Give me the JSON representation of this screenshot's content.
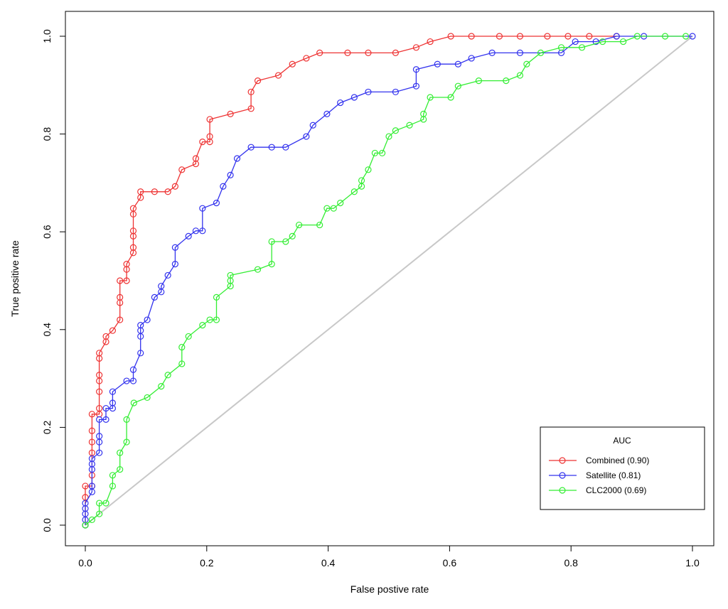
{
  "chart_data": {
    "type": "line",
    "title": "",
    "xlabel": "False postive rate",
    "ylabel": "True positive rate",
    "xlim": [
      0,
      1
    ],
    "ylim": [
      0,
      1
    ],
    "xticks": [
      "0.0",
      "0.2",
      "0.4",
      "0.6",
      "0.8",
      "1.0"
    ],
    "yticks": [
      "0.0",
      "0.2",
      "0.4",
      "0.6",
      "0.8",
      "1.0"
    ],
    "grid": false,
    "legend": {
      "title": "AUC",
      "position": "bottom-right",
      "entries": [
        "Combined (0.90)",
        "Satellite (0.81)",
        "CLC2000 (0.69)"
      ]
    },
    "diagonal": {
      "color": "#c8c8c8",
      "from": [
        0,
        0
      ],
      "to": [
        1,
        1
      ]
    },
    "series": [
      {
        "name": "Combined (0.90)",
        "color": "#ee3333",
        "points": [
          [
            0,
            0
          ],
          [
            0,
            0.057
          ],
          [
            0,
            0.08
          ],
          [
            0.011,
            0.08
          ],
          [
            0.011,
            0.102
          ],
          [
            0.011,
            0.148
          ],
          [
            0.011,
            0.17
          ],
          [
            0.011,
            0.193
          ],
          [
            0.011,
            0.227
          ],
          [
            0.023,
            0.227
          ],
          [
            0.023,
            0.239
          ],
          [
            0.023,
            0.273
          ],
          [
            0.023,
            0.295
          ],
          [
            0.023,
            0.307
          ],
          [
            0.023,
            0.341
          ],
          [
            0.023,
            0.352
          ],
          [
            0.034,
            0.375
          ],
          [
            0.034,
            0.386
          ],
          [
            0.045,
            0.398
          ],
          [
            0.057,
            0.42
          ],
          [
            0.057,
            0.455
          ],
          [
            0.057,
            0.466
          ],
          [
            0.057,
            0.5
          ],
          [
            0.068,
            0.5
          ],
          [
            0.068,
            0.523
          ],
          [
            0.068,
            0.534
          ],
          [
            0.079,
            0.557
          ],
          [
            0.079,
            0.568
          ],
          [
            0.079,
            0.591
          ],
          [
            0.079,
            0.602
          ],
          [
            0.079,
            0.636
          ],
          [
            0.079,
            0.648
          ],
          [
            0.091,
            0.67
          ],
          [
            0.091,
            0.682
          ],
          [
            0.114,
            0.682
          ],
          [
            0.136,
            0.682
          ],
          [
            0.148,
            0.693
          ],
          [
            0.159,
            0.727
          ],
          [
            0.182,
            0.739
          ],
          [
            0.182,
            0.75
          ],
          [
            0.193,
            0.784
          ],
          [
            0.205,
            0.784
          ],
          [
            0.205,
            0.795
          ],
          [
            0.205,
            0.83
          ],
          [
            0.239,
            0.841
          ],
          [
            0.273,
            0.852
          ],
          [
            0.273,
            0.886
          ],
          [
            0.284,
            0.909
          ],
          [
            0.318,
            0.92
          ],
          [
            0.341,
            0.943
          ],
          [
            0.364,
            0.955
          ],
          [
            0.386,
            0.966
          ],
          [
            0.432,
            0.966
          ],
          [
            0.466,
            0.966
          ],
          [
            0.511,
            0.966
          ],
          [
            0.545,
            0.977
          ],
          [
            0.568,
            0.989
          ],
          [
            0.602,
            1.0
          ],
          [
            0.636,
            1.0
          ],
          [
            0.682,
            1.0
          ],
          [
            0.716,
            1.0
          ],
          [
            0.761,
            1.0
          ],
          [
            0.795,
            1.0
          ],
          [
            0.83,
            1.0
          ],
          [
            0.875,
            1.0
          ]
        ]
      },
      {
        "name": "Satellite (0.81)",
        "color": "#3333ee",
        "points": [
          [
            0,
            0
          ],
          [
            0,
            0.011
          ],
          [
            0,
            0.023
          ],
          [
            0,
            0.034
          ],
          [
            0,
            0.045
          ],
          [
            0.011,
            0.068
          ],
          [
            0.011,
            0.08
          ],
          [
            0.011,
            0.114
          ],
          [
            0.011,
            0.125
          ],
          [
            0.011,
            0.136
          ],
          [
            0.023,
            0.148
          ],
          [
            0.023,
            0.17
          ],
          [
            0.023,
            0.182
          ],
          [
            0.023,
            0.216
          ],
          [
            0.034,
            0.216
          ],
          [
            0.034,
            0.239
          ],
          [
            0.045,
            0.239
          ],
          [
            0.045,
            0.25
          ],
          [
            0.045,
            0.273
          ],
          [
            0.068,
            0.295
          ],
          [
            0.079,
            0.295
          ],
          [
            0.079,
            0.318
          ],
          [
            0.091,
            0.352
          ],
          [
            0.091,
            0.386
          ],
          [
            0.091,
            0.398
          ],
          [
            0.091,
            0.409
          ],
          [
            0.102,
            0.42
          ],
          [
            0.114,
            0.466
          ],
          [
            0.125,
            0.477
          ],
          [
            0.125,
            0.489
          ],
          [
            0.136,
            0.511
          ],
          [
            0.148,
            0.534
          ],
          [
            0.148,
            0.568
          ],
          [
            0.17,
            0.591
          ],
          [
            0.182,
            0.602
          ],
          [
            0.193,
            0.602
          ],
          [
            0.193,
            0.648
          ],
          [
            0.216,
            0.659
          ],
          [
            0.227,
            0.693
          ],
          [
            0.239,
            0.716
          ],
          [
            0.25,
            0.75
          ],
          [
            0.273,
            0.773
          ],
          [
            0.307,
            0.773
          ],
          [
            0.33,
            0.773
          ],
          [
            0.364,
            0.795
          ],
          [
            0.375,
            0.818
          ],
          [
            0.398,
            0.841
          ],
          [
            0.42,
            0.864
          ],
          [
            0.443,
            0.875
          ],
          [
            0.466,
            0.886
          ],
          [
            0.511,
            0.886
          ],
          [
            0.545,
            0.898
          ],
          [
            0.545,
            0.932
          ],
          [
            0.58,
            0.943
          ],
          [
            0.614,
            0.943
          ],
          [
            0.636,
            0.955
          ],
          [
            0.67,
            0.966
          ],
          [
            0.716,
            0.966
          ],
          [
            0.784,
            0.966
          ],
          [
            0.807,
            0.989
          ],
          [
            0.841,
            0.989
          ],
          [
            0.875,
            1.0
          ],
          [
            0.92,
            1.0
          ],
          [
            1.0,
            1.0
          ]
        ]
      },
      {
        "name": "CLC2000 (0.69)",
        "color": "#33ee33",
        "points": [
          [
            0,
            0
          ],
          [
            0.011,
            0.011
          ],
          [
            0.023,
            0.023
          ],
          [
            0.023,
            0.045
          ],
          [
            0.034,
            0.045
          ],
          [
            0.045,
            0.08
          ],
          [
            0.045,
            0.102
          ],
          [
            0.057,
            0.114
          ],
          [
            0.057,
            0.148
          ],
          [
            0.068,
            0.17
          ],
          [
            0.068,
            0.216
          ],
          [
            0.08,
            0.25
          ],
          [
            0.102,
            0.261
          ],
          [
            0.125,
            0.284
          ],
          [
            0.136,
            0.307
          ],
          [
            0.159,
            0.33
          ],
          [
            0.159,
            0.364
          ],
          [
            0.17,
            0.386
          ],
          [
            0.193,
            0.409
          ],
          [
            0.205,
            0.42
          ],
          [
            0.216,
            0.42
          ],
          [
            0.216,
            0.466
          ],
          [
            0.239,
            0.489
          ],
          [
            0.239,
            0.5
          ],
          [
            0.239,
            0.511
          ],
          [
            0.284,
            0.523
          ],
          [
            0.307,
            0.534
          ],
          [
            0.307,
            0.58
          ],
          [
            0.33,
            0.58
          ],
          [
            0.341,
            0.591
          ],
          [
            0.352,
            0.614
          ],
          [
            0.386,
            0.614
          ],
          [
            0.398,
            0.648
          ],
          [
            0.409,
            0.648
          ],
          [
            0.42,
            0.659
          ],
          [
            0.443,
            0.682
          ],
          [
            0.455,
            0.693
          ],
          [
            0.455,
            0.705
          ],
          [
            0.466,
            0.727
          ],
          [
            0.477,
            0.761
          ],
          [
            0.489,
            0.761
          ],
          [
            0.5,
            0.795
          ],
          [
            0.511,
            0.807
          ],
          [
            0.534,
            0.818
          ],
          [
            0.557,
            0.83
          ],
          [
            0.557,
            0.841
          ],
          [
            0.568,
            0.875
          ],
          [
            0.602,
            0.875
          ],
          [
            0.614,
            0.898
          ],
          [
            0.648,
            0.909
          ],
          [
            0.693,
            0.909
          ],
          [
            0.716,
            0.92
          ],
          [
            0.727,
            0.943
          ],
          [
            0.75,
            0.966
          ],
          [
            0.784,
            0.977
          ],
          [
            0.818,
            0.977
          ],
          [
            0.852,
            0.989
          ],
          [
            0.886,
            0.989
          ],
          [
            0.909,
            1.0
          ],
          [
            0.955,
            1.0
          ],
          [
            0.989,
            1.0
          ]
        ]
      }
    ]
  }
}
